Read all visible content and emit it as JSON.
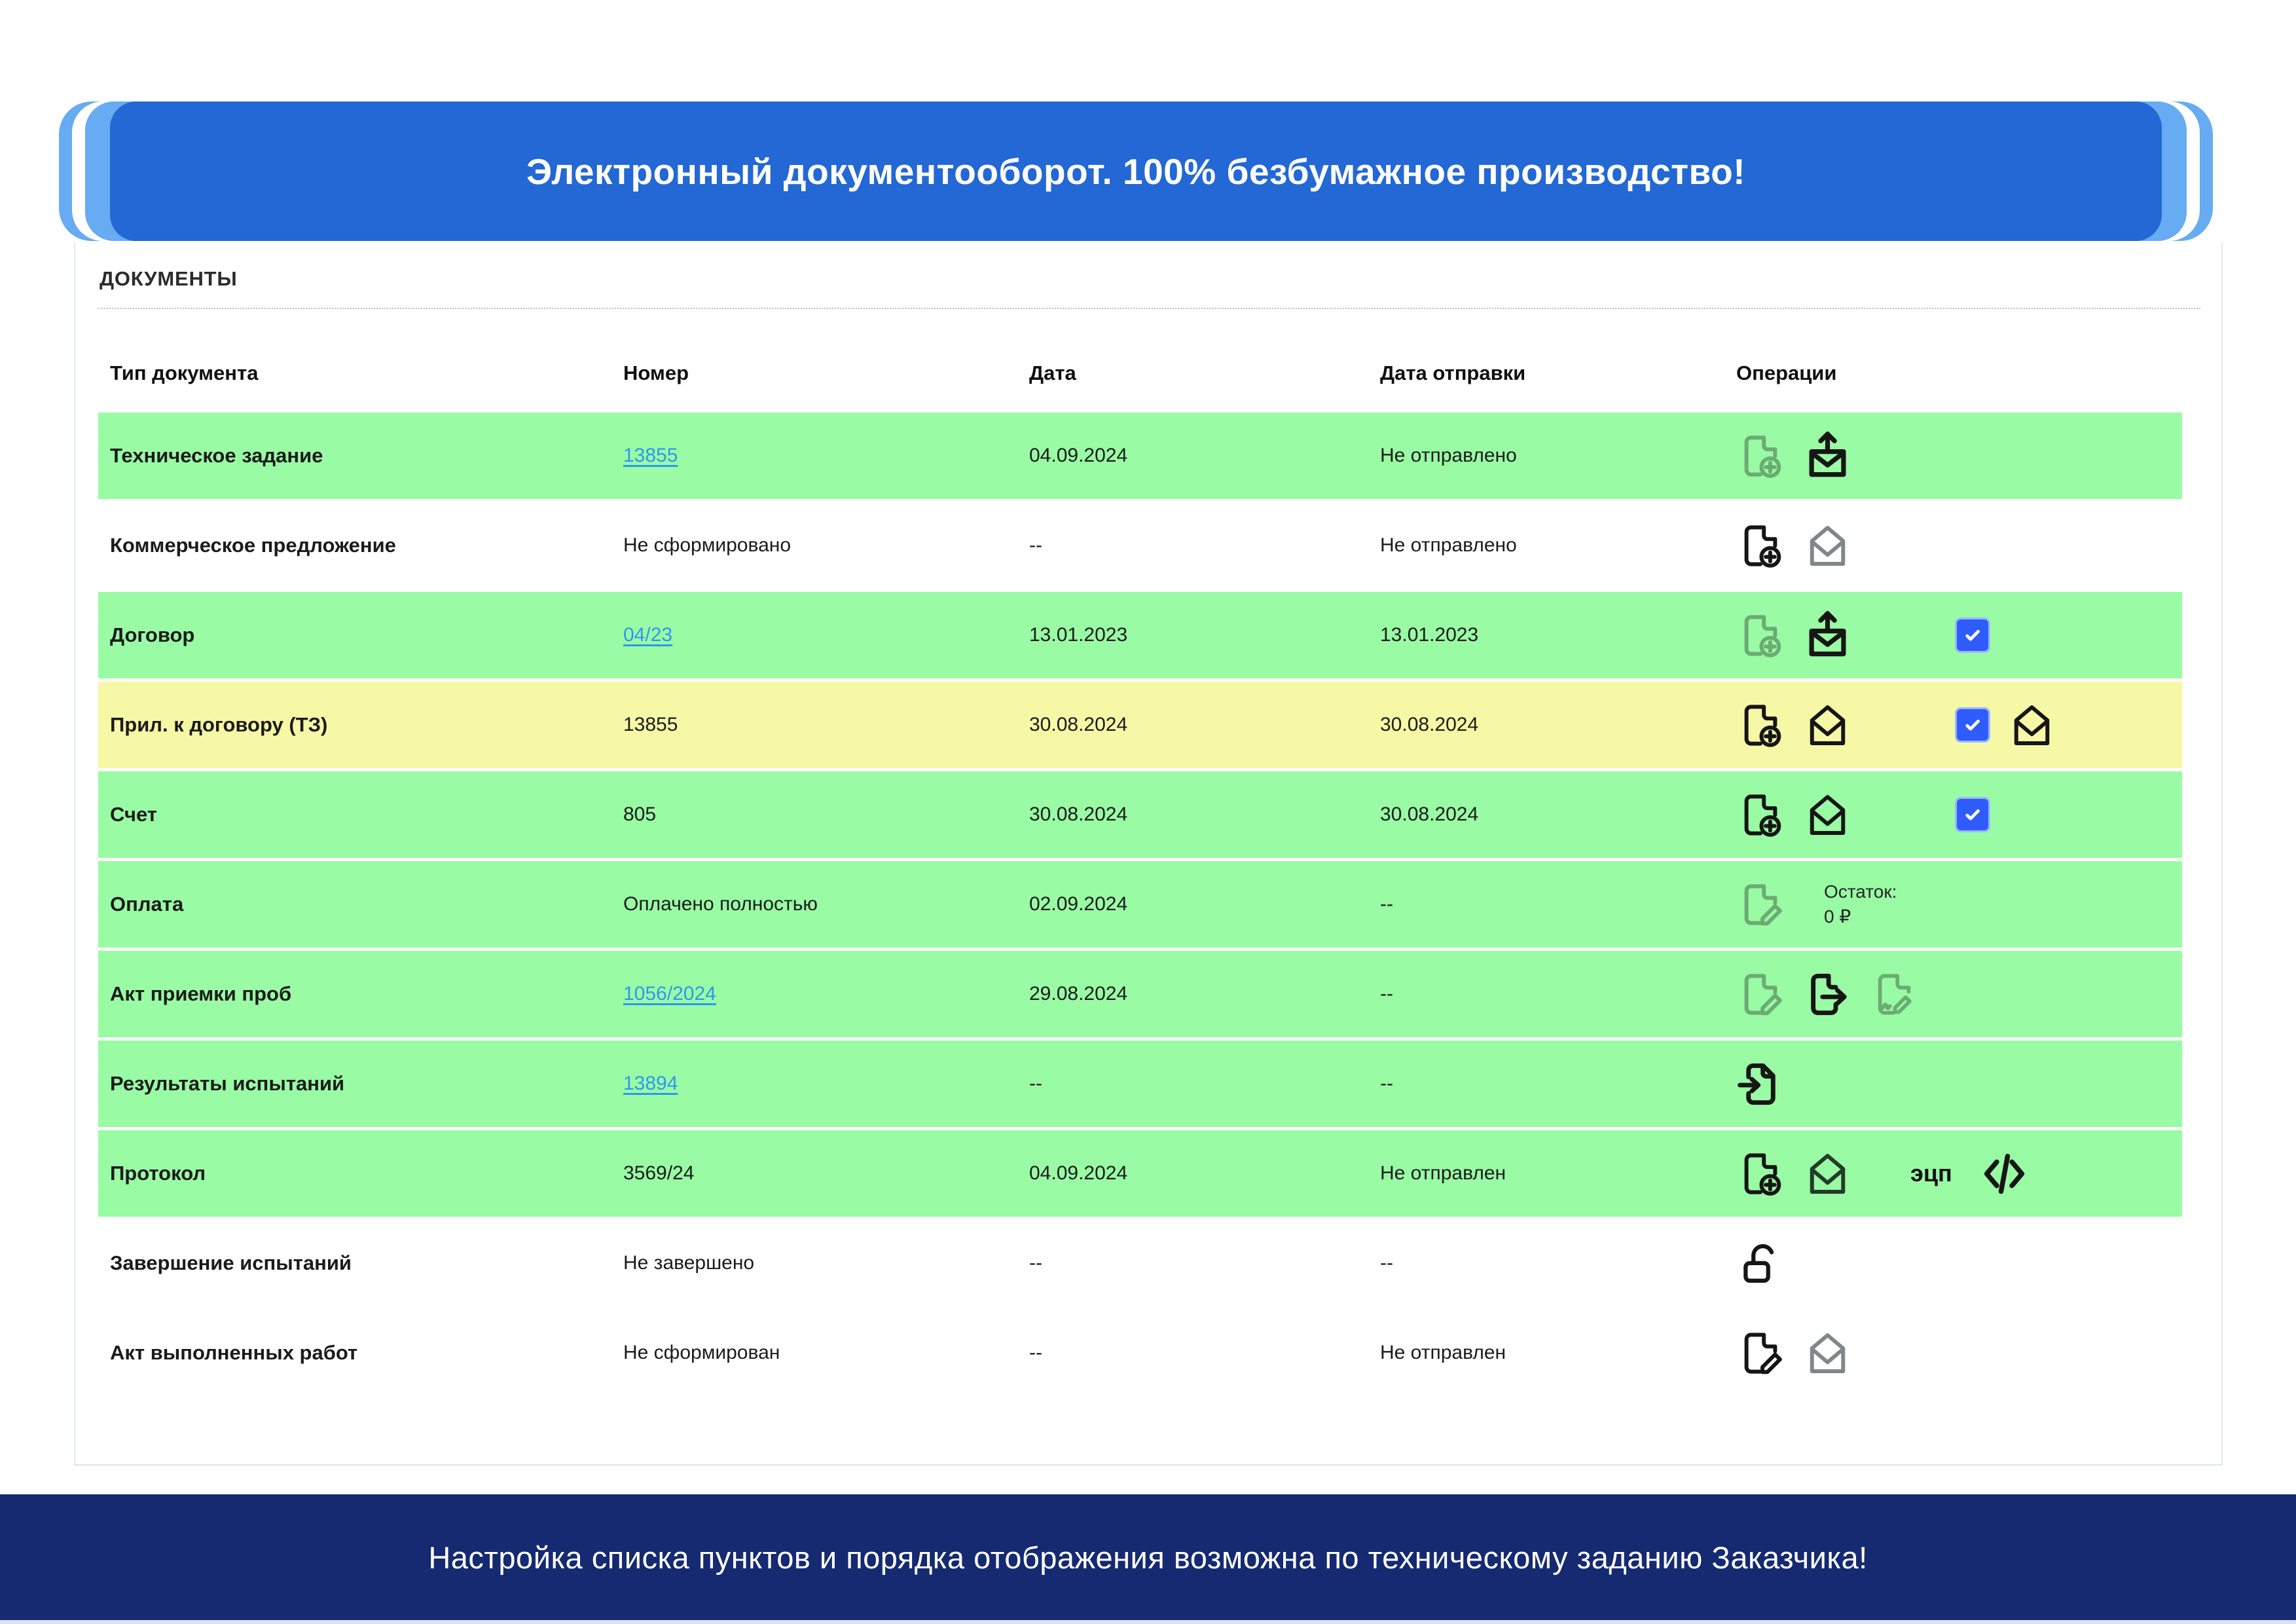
{
  "title_banner": {
    "text": "Электронный документооборот. 100% безбумажное производство!"
  },
  "section": {
    "title": "ДОКУМЕНТЫ"
  },
  "table": {
    "headers": [
      "Тип документа",
      "Номер",
      "Дата",
      "Дата отправки",
      "Операции"
    ],
    "rows": [
      {
        "type": "Техническое задание",
        "number": "13855",
        "number_link": true,
        "date": "04.09.2024",
        "sent": "Не отправлено",
        "highlight": "green",
        "ops": [
          {
            "kind": "icon",
            "icon": "file-plus-icon",
            "tone": "muted"
          },
          {
            "kind": "icon",
            "icon": "mail-upload-icon",
            "tone": "black"
          }
        ]
      },
      {
        "type": "Коммерческое предложение",
        "number": "Не сформировано",
        "number_link": false,
        "date": "--",
        "sent": "Не отправлено",
        "highlight": "white",
        "ops": [
          {
            "kind": "icon",
            "icon": "file-plus-icon",
            "tone": "black"
          },
          {
            "kind": "icon",
            "icon": "mail-open-icon",
            "tone": "gray"
          }
        ]
      },
      {
        "type": "Договор",
        "number": "04/23",
        "number_link": true,
        "date": "13.01.2023",
        "sent": "13.01.2023",
        "highlight": "green",
        "ops": [
          {
            "kind": "icon",
            "icon": "file-plus-icon",
            "tone": "muted"
          },
          {
            "kind": "icon",
            "icon": "mail-upload-icon",
            "tone": "black"
          },
          {
            "kind": "checkbox",
            "checked": true
          }
        ]
      },
      {
        "type": "Прил. к договору (ТЗ)",
        "number": "13855",
        "number_link": false,
        "date": "30.08.2024",
        "sent": "30.08.2024",
        "highlight": "yellow",
        "ops": [
          {
            "kind": "icon",
            "icon": "file-plus-icon",
            "tone": "black"
          },
          {
            "kind": "icon",
            "icon": "mail-open-icon",
            "tone": "black"
          },
          {
            "kind": "checkbox",
            "checked": true
          },
          {
            "kind": "icon",
            "icon": "mail-open-icon",
            "tone": "black"
          }
        ]
      },
      {
        "type": "Счет",
        "number": "805",
        "number_link": false,
        "date": "30.08.2024",
        "sent": "30.08.2024",
        "highlight": "green",
        "ops": [
          {
            "kind": "icon",
            "icon": "file-plus-icon",
            "tone": "black"
          },
          {
            "kind": "icon",
            "icon": "mail-open-icon",
            "tone": "black"
          },
          {
            "kind": "checkbox",
            "checked": true
          }
        ]
      },
      {
        "type": "Оплата",
        "number": "Оплачено полностью",
        "number_link": false,
        "date": "02.09.2024",
        "sent": "--",
        "highlight": "green",
        "ops": [
          {
            "kind": "icon",
            "icon": "file-edit-icon",
            "tone": "muted"
          },
          {
            "kind": "note",
            "lines": [
              "Остаток:",
              "0 ₽"
            ]
          }
        ]
      },
      {
        "type": "Акт приемки проб",
        "number": "1056/2024",
        "number_link": true,
        "date": "29.08.2024",
        "sent": "--",
        "highlight": "green",
        "ops": [
          {
            "kind": "icon",
            "icon": "file-edit-icon",
            "tone": "muted"
          },
          {
            "kind": "icon",
            "icon": "file-export-icon",
            "tone": "black"
          },
          {
            "kind": "icon",
            "icon": "file-signature-icon",
            "tone": "muted"
          }
        ]
      },
      {
        "type": "Результаты испытаний",
        "number": "13894",
        "number_link": true,
        "date": "--",
        "sent": "--",
        "highlight": "green",
        "ops": [
          {
            "kind": "icon",
            "icon": "file-import-icon",
            "tone": "black"
          }
        ]
      },
      {
        "type": "Протокол",
        "number": "3569/24",
        "number_link": false,
        "date": "04.09.2024",
        "sent": "Не отправлен",
        "highlight": "green",
        "ops": [
          {
            "kind": "icon",
            "icon": "file-plus-icon",
            "tone": "black"
          },
          {
            "kind": "icon",
            "icon": "mail-open-icon",
            "tone": "dark"
          },
          {
            "kind": "label",
            "text": "эцп"
          },
          {
            "kind": "icon",
            "icon": "code-icon",
            "tone": "black"
          }
        ]
      },
      {
        "type": "Завершение испытаний",
        "number": "Не завершено",
        "number_link": false,
        "date": "--",
        "sent": "--",
        "highlight": "white",
        "ops": [
          {
            "kind": "icon",
            "icon": "unlock-icon",
            "tone": "black"
          }
        ]
      },
      {
        "type": "Акт выполненных работ",
        "number": "Не сформирован",
        "number_link": false,
        "date": "--",
        "sent": "Не отправлен",
        "highlight": "white",
        "ops": [
          {
            "kind": "icon",
            "icon": "file-edit-icon",
            "tone": "black"
          },
          {
            "kind": "icon",
            "icon": "mail-open-icon",
            "tone": "gray"
          }
        ]
      }
    ]
  },
  "footer_banner": {
    "text": "Настройка списка пунктов и порядка отображения возможна по техническому заданию Заказчика!"
  },
  "colors": {
    "banner_blue": "#2368d4",
    "banner_stripe": "#67abf2",
    "row_green": "#99fba4",
    "row_yellow": "#f6f8a6",
    "footer_navy": "#152a70",
    "link_blue": "#2e96f3",
    "checkbox_blue": "#2e5cff"
  }
}
